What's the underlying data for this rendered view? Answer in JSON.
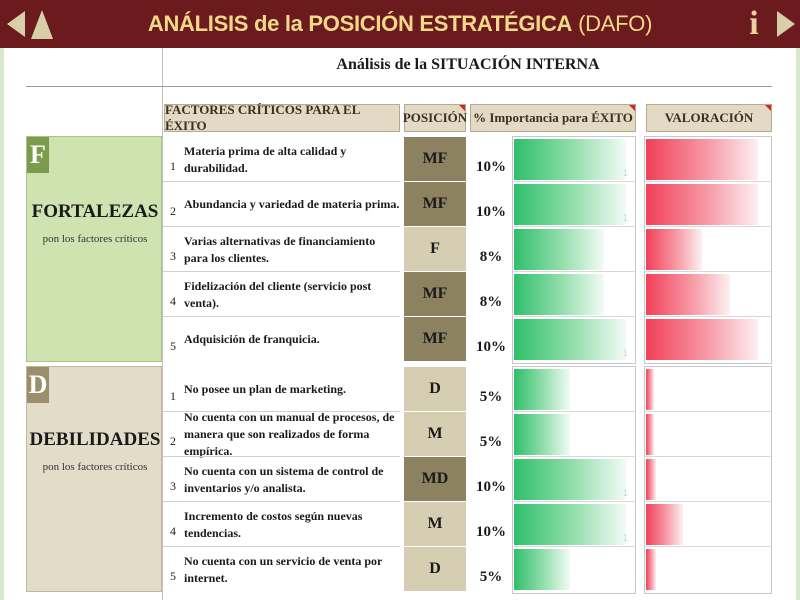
{
  "header": {
    "title_main": "ANÁLISIS de la POSICIÓN ESTRATÉGICA",
    "title_paren": "(DAFO)",
    "info_label": "i"
  },
  "subtitle": "Análisis de la SITUACIÓN INTERNA",
  "columns": {
    "factors": "FACTORES CRÍTICOS PARA EL ÉXITO",
    "position": "POSICIÓN",
    "importance": "% Importancia para ÉXITO",
    "valuation": "VALORACIÓN"
  },
  "colors": {
    "header_bg": "#6b1a1d",
    "header_text": "#f2d98a",
    "strength_bg": "#cfe3b0",
    "strength_letter_bg": "#7a9c4c",
    "weakness_bg": "#e3dcc8",
    "weakness_letter_bg": "#9a8e6c",
    "position_dark": "#8c8260",
    "position_light": "#d6ceb2",
    "importance_bar": "#2fbf6a",
    "valuation_bar": "#f04058"
  },
  "strengths": {
    "letter": "F",
    "name": "FORTALEZAS",
    "sub": "pon los factores críticos",
    "rows": [
      {
        "num": "1",
        "text": "Materia prima de alta calidad y durabilidad.",
        "position": "MF",
        "pct": "10%",
        "importance": 0.1,
        "valuation": 0.9,
        "tick_imp": "1",
        "tick_val": ""
      },
      {
        "num": "2",
        "text": "Abundancia y variedad de materia prima.",
        "position": "MF",
        "pct": "10%",
        "importance": 0.1,
        "valuation": 0.9,
        "tick_imp": "1",
        "tick_val": ""
      },
      {
        "num": "3",
        "text": "Varias alternativas de financiamiento para los clientes.",
        "position": "F",
        "pct": "8%",
        "importance": 0.08,
        "valuation": 0.45,
        "tick_imp": "",
        "tick_val": ""
      },
      {
        "num": "4",
        "text": "Fidelización del cliente (servicio post venta).",
        "position": "MF",
        "pct": "8%",
        "importance": 0.08,
        "valuation": 0.68,
        "tick_imp": "",
        "tick_val": ""
      },
      {
        "num": "5",
        "text": "Adquisición de franquicia.",
        "position": "MF",
        "pct": "10%",
        "importance": 0.1,
        "valuation": 0.9,
        "tick_imp": "1",
        "tick_val": ""
      }
    ]
  },
  "weaknesses": {
    "letter": "D",
    "name": "DEBILIDADES",
    "sub": "pon los factores críticos",
    "rows": [
      {
        "num": "1",
        "text": "No posee un plan de marketing.",
        "position": "D",
        "pct": "5%",
        "importance": 0.05,
        "valuation": 0.05,
        "tick_imp": "",
        "tick_val": ""
      },
      {
        "num": "2",
        "text": "No cuenta con un manual de procesos, de manera que son realizados de forma empírica.",
        "position": "M",
        "pct": "5%",
        "importance": 0.05,
        "valuation": 0.02,
        "tick_imp": "",
        "tick_val": ""
      },
      {
        "num": "3",
        "text": "No cuenta con un sistema de control de inventarios y/o analista.",
        "position": "MD",
        "pct": "10%",
        "importance": 0.1,
        "valuation": 0.08,
        "tick_imp": "1",
        "tick_val": ""
      },
      {
        "num": "4",
        "text": "Incremento de costos según nuevas tendencias.",
        "position": "M",
        "pct": "10%",
        "importance": 0.1,
        "valuation": 0.3,
        "tick_imp": "1",
        "tick_val": ""
      },
      {
        "num": "5",
        "text": "No cuenta con un servicio de venta por internet.",
        "position": "D",
        "pct": "5%",
        "importance": 0.05,
        "valuation": 0.08,
        "tick_imp": "",
        "tick_val": ""
      }
    ]
  }
}
